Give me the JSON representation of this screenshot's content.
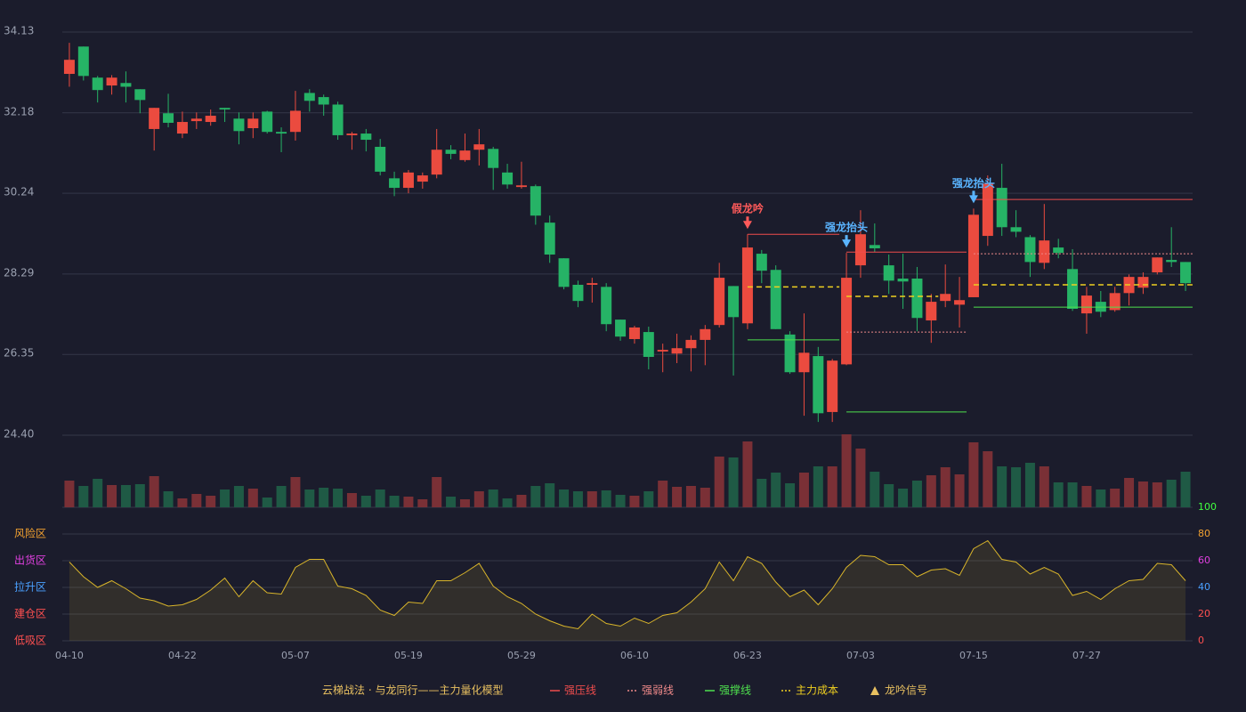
{
  "chart_data": {
    "type": "candlestick",
    "categories": [
      "04-10",
      null,
      null,
      null,
      null,
      null,
      null,
      null,
      "04-22",
      null,
      null,
      null,
      null,
      null,
      null,
      null,
      "05-07",
      null,
      null,
      null,
      null,
      null,
      null,
      null,
      "05-19",
      null,
      null,
      null,
      null,
      null,
      null,
      null,
      "05-29",
      null,
      null,
      null,
      null,
      null,
      null,
      null,
      "06-10",
      null,
      null,
      null,
      null,
      null,
      null,
      null,
      "06-23",
      null,
      null,
      null,
      null,
      null,
      null,
      null,
      "07-03",
      null,
      null,
      null,
      null,
      null,
      null,
      null,
      "07-15",
      null,
      null,
      null,
      null,
      null,
      null,
      null,
      "07-27",
      null,
      null,
      null,
      null,
      null,
      null,
      null
    ],
    "open": [
      33.12,
      33.78,
      33.03,
      32.84,
      32.9,
      32.75,
      31.79,
      32.17,
      31.68,
      31.98,
      31.96,
      32.3,
      32.04,
      31.81,
      32.21,
      31.72,
      31.72,
      32.66,
      32.56,
      32.38,
      31.64,
      31.68,
      31.36,
      30.6,
      30.37,
      30.52,
      30.69,
      31.29,
      31.04,
      31.29,
      31.31,
      30.74,
      30.39,
      30.41,
      29.53,
      28.67,
      28.03,
      28.03,
      27.98,
      27.19,
      26.72,
      26.89,
      26.42,
      26.37,
      26.5,
      26.7,
      27.06,
      28.0,
      27.1,
      28.78,
      28.39,
      26.83,
      25.92,
      26.31,
      24.96,
      26.11,
      28.5,
      28.99,
      28.5,
      28.18,
      28.18,
      27.17,
      27.64,
      27.55,
      27.73,
      29.21,
      30.37,
      29.42,
      29.18,
      28.56,
      28.93,
      28.41,
      27.34,
      27.62,
      27.42,
      27.83,
      27.96,
      28.33,
      28.63,
      28.58
    ],
    "high": [
      33.87,
      33.78,
      33.07,
      33.09,
      33.18,
      32.75,
      32.3,
      32.64,
      32.21,
      32.19,
      32.26,
      32.3,
      32.19,
      32.19,
      32.23,
      31.83,
      32.71,
      32.75,
      32.62,
      32.45,
      31.72,
      31.79,
      31.55,
      30.76,
      30.8,
      30.74,
      31.79,
      31.4,
      31.68,
      31.79,
      31.36,
      30.95,
      31.0,
      30.45,
      29.7,
      28.67,
      28.13,
      28.2,
      28.07,
      27.19,
      27.04,
      27.02,
      26.61,
      26.85,
      26.81,
      27.06,
      28.56,
      28.0,
      29.25,
      28.87,
      28.5,
      26.91,
      27.34,
      26.53,
      26.24,
      28.8,
      29.83,
      29.51,
      28.76,
      28.78,
      28.46,
      27.81,
      28.52,
      28.22,
      29.87,
      30.67,
      30.95,
      29.83,
      29.23,
      29.98,
      29.14,
      28.89,
      27.98,
      27.88,
      27.98,
      28.28,
      28.33,
      28.69,
      29.42,
      28.58
    ],
    "low": [
      32.81,
      32.96,
      32.43,
      32.62,
      32.43,
      32.17,
      31.27,
      31.83,
      31.57,
      31.79,
      31.87,
      31.96,
      31.42,
      31.57,
      31.68,
      31.23,
      31.51,
      32.21,
      32.11,
      31.53,
      31.29,
      31.25,
      30.67,
      30.17,
      30.24,
      30.35,
      30.6,
      31.06,
      31.0,
      30.91,
      30.32,
      30.35,
      30.35,
      29.48,
      28.56,
      27.92,
      27.49,
      27.6,
      26.91,
      26.68,
      26.61,
      25.99,
      25.92,
      26.14,
      25.94,
      26.09,
      27.0,
      25.84,
      26.96,
      28.07,
      26.96,
      25.88,
      24.87,
      24.72,
      24.72,
      26.09,
      28.2,
      28.82,
      27.81,
      27.45,
      26.91,
      26.63,
      27.49,
      27.0,
      27.73,
      28.97,
      29.21,
      29.18,
      28.22,
      28.41,
      28.67,
      27.4,
      26.85,
      27.25,
      27.38,
      27.53,
      27.81,
      28.28,
      28.46,
      27.88
    ],
    "close": [
      33.46,
      33.07,
      32.73,
      33.03,
      32.81,
      32.49,
      32.3,
      31.94,
      31.96,
      32.04,
      32.11,
      32.26,
      31.74,
      32.04,
      31.72,
      31.68,
      32.23,
      32.47,
      32.38,
      31.64,
      31.68,
      31.53,
      30.76,
      30.37,
      30.74,
      30.67,
      31.29,
      31.19,
      31.27,
      31.42,
      30.85,
      30.45,
      30.43,
      29.7,
      28.76,
      27.98,
      27.64,
      28.07,
      27.08,
      26.78,
      27.0,
      26.29,
      26.46,
      26.5,
      26.7,
      26.96,
      28.2,
      27.25,
      28.93,
      28.37,
      26.96,
      25.92,
      26.39,
      24.93,
      26.2,
      28.2,
      29.25,
      28.91,
      28.13,
      28.11,
      27.23,
      27.62,
      27.81,
      27.66,
      29.72,
      30.47,
      29.42,
      29.31,
      28.58,
      29.1,
      28.8,
      27.45,
      27.77,
      27.38,
      27.83,
      28.22,
      28.22,
      28.69,
      28.58,
      28.07
    ],
    "up_color": "#eb4b3f",
    "down_color": "#26b366",
    "ylim": [
      24.4,
      34.13
    ],
    "yticks": [
      {
        "value": 24.4,
        "label": "24.40"
      },
      26.35,
      28.29,
      30.24,
      32.18,
      34.13
    ],
    "grid": true,
    "volume": {
      "values": [
        30,
        24,
        32,
        25,
        25,
        26,
        35,
        18,
        10,
        15,
        13,
        20,
        24,
        21,
        11,
        24,
        34,
        20,
        22,
        21,
        16,
        13,
        20,
        13,
        12,
        9,
        34,
        12,
        9,
        18,
        20,
        10,
        14,
        24,
        27,
        20,
        18,
        18,
        19,
        14,
        13,
        18,
        30,
        23,
        24,
        22,
        57,
        56,
        74,
        32,
        39,
        27,
        39,
        46,
        46,
        82,
        66,
        40,
        26,
        21,
        30,
        36,
        45,
        37,
        73,
        63,
        46,
        45,
        50,
        46,
        28,
        28,
        24,
        20,
        21,
        33,
        29,
        28,
        31,
        40
      ],
      "up_color": "#7a3036",
      "down_color": "#1f5a45"
    },
    "levels": [
      {
        "name": "强压线",
        "color": "#ef4d4d",
        "dash": false,
        "segments": [
          {
            "start": 48,
            "end": 54,
            "value": 29.25
          },
          {
            "start": 55,
            "end": 63,
            "value": 28.82
          },
          {
            "start": 64,
            "end": 79,
            "value": 30.09
          }
        ]
      },
      {
        "name": "强弱线",
        "color": "#f08a8a",
        "dash": true,
        "segments": [
          {
            "start": 55,
            "end": 63,
            "value": 26.89
          },
          {
            "start": 64,
            "end": 79,
            "value": 28.78
          }
        ]
      },
      {
        "name": "强撑线",
        "color": "#4ee04e",
        "dash": false,
        "segments": [
          {
            "start": 48,
            "end": 54,
            "value": 26.7
          },
          {
            "start": 55,
            "end": 63,
            "value": 24.96
          },
          {
            "start": 64,
            "end": 79,
            "value": 27.49
          }
        ]
      },
      {
        "name": "主力成本",
        "color": "#f0d020",
        "dash": true,
        "segments": [
          {
            "start": 48,
            "end": 54,
            "value": 27.98
          },
          {
            "start": 55,
            "end": 61,
            "value": 27.75
          },
          {
            "start": 64,
            "end": 79,
            "value": 28.03
          }
        ]
      }
    ],
    "signals": [
      {
        "index": 48,
        "label": "假龙吟",
        "color": "#ff5a5a"
      },
      {
        "index": 55,
        "label": "强龙抬头",
        "color": "#5ab4ff"
      },
      {
        "index": 64,
        "label": "强龙抬头",
        "color": "#5ab4ff"
      }
    ],
    "signal_legend": "龙吟信号",
    "signal_legend_color": "#e8c060",
    "legend_title": "云梯战法 · 与龙同行——主力量化模型",
    "legend_title_color": "#e8c060",
    "indicator": {
      "values": [
        59,
        48,
        40,
        45,
        39,
        32,
        30,
        26,
        27,
        31,
        38,
        47,
        33,
        45,
        36,
        35,
        55,
        61,
        61,
        41,
        39,
        34,
        23,
        19,
        29,
        28,
        45,
        45,
        51,
        58,
        41,
        33,
        28,
        20,
        15,
        11,
        9,
        20,
        13,
        11,
        17,
        13,
        19,
        21,
        29,
        39,
        59,
        45,
        63,
        58,
        44,
        33,
        38,
        27,
        39,
        55,
        64,
        63,
        57,
        57,
        48,
        53,
        54,
        49,
        69,
        75,
        61,
        59,
        50,
        55,
        50,
        34,
        37,
        31,
        39,
        45,
        46,
        58,
        57,
        45
      ],
      "color": "#d9b52a",
      "ylim": [
        0,
        100
      ],
      "yticks": [
        0,
        20,
        40,
        60,
        80,
        100
      ],
      "ytick_colors": [
        "#ff5050",
        "#ff5050",
        "#4aa0ff",
        "#e040e0",
        "#f0a030",
        "#40ff40"
      ],
      "zones": [
        {
          "value": 80,
          "label": "风险区",
          "color": "#f0a030"
        },
        {
          "value": 60,
          "label": "出货区",
          "color": "#e040e0"
        },
        {
          "value": 40,
          "label": "拉升区",
          "color": "#4aa0ff"
        },
        {
          "value": 20,
          "label": "建仓区",
          "color": "#ff5050"
        },
        {
          "value": 0,
          "label": "低吸区",
          "color": "#ff5050"
        }
      ]
    }
  }
}
